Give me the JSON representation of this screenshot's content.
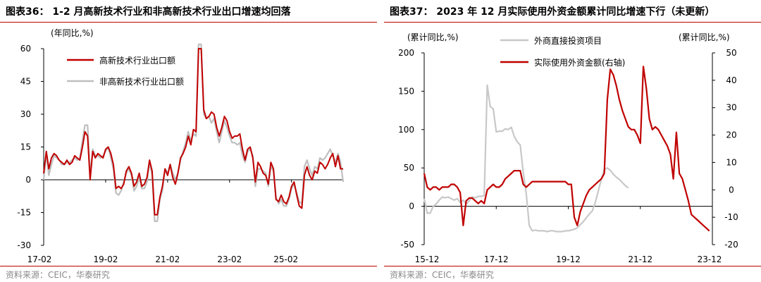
{
  "charts": [
    {
      "title": "图表36：  1-2 月高新技术行业和非高新技术行业出口增速均回落",
      "source": "资料来源：CEIC，华泰研究",
      "ylabel": "(年同比,%)",
      "x_tick_labels": [
        "17-02",
        "19-02",
        "21-02",
        "23-02",
        "25-02"
      ],
      "y_tick_labels": [
        "60",
        "45",
        "30",
        "15",
        "0",
        "-15",
        "-30"
      ],
      "legend": [
        "高新技术行业出口额",
        "非高新技术行业出口额"
      ]
    },
    {
      "title": "图表37：  2023 年 12 月实际使用外资金额累计同比增速下行（未更新）",
      "source": "资料来源：CEIC，华泰研究",
      "ylabel_left": "(累计同比,%)",
      "ylabel_right": "(累计同比,%)",
      "x_tick_labels": [
        "15-12",
        "17-12",
        "19-12",
        "21-12",
        "23-12"
      ],
      "y_left_tick_labels": [
        "200",
        "150",
        "100",
        "50",
        "0",
        "-50"
      ],
      "y_right_tick_labels": [
        "50",
        "40",
        "30",
        "20",
        "10",
        "0",
        "-10",
        "-20"
      ],
      "legend": [
        "外商直接投资项目",
        "实际使用外资金额(右轴)"
      ]
    }
  ],
  "chart_data": [
    {
      "type": "line",
      "x_start": "2017-02",
      "x_end": "2025-02",
      "ylim": [
        -30,
        60
      ],
      "grid": false,
      "legend_position": "top-left",
      "colors": [
        "#c00000",
        "#bfbfbf"
      ],
      "series": [
        {
          "name": "高新技术行业出口额",
          "color": "#c00000",
          "values": [
            3,
            13,
            5,
            10,
            12,
            11,
            9,
            8,
            7,
            9,
            7,
            8,
            11,
            10,
            9,
            15,
            22,
            20,
            0,
            13,
            10,
            12,
            11,
            10,
            14,
            15,
            12,
            7,
            -4,
            -3,
            -4,
            -2,
            4,
            6,
            3,
            -3,
            -1,
            3,
            -3,
            -2,
            1,
            9,
            4,
            -16,
            -16,
            -8,
            -3,
            5,
            2,
            7,
            1,
            -2,
            3,
            10,
            12,
            15,
            20,
            16,
            23,
            22,
            60,
            60,
            32,
            28,
            29,
            31,
            30,
            24,
            20,
            24,
            29,
            27,
            22,
            19,
            20,
            20,
            21,
            14,
            9,
            14,
            15,
            10,
            -1,
            8,
            6,
            3,
            2,
            -2,
            8,
            5,
            -9,
            -10,
            -7,
            -10,
            -11,
            -8,
            -3,
            -1,
            -7,
            -12,
            -13,
            2,
            6,
            2,
            0,
            4,
            3,
            8,
            7,
            5,
            7,
            10,
            12,
            6,
            11,
            5,
            5
          ]
        },
        {
          "name": "非高新技术行业出口额",
          "color": "#bfbfbf",
          "values": [
            0,
            12,
            2,
            7,
            11,
            10,
            9,
            7,
            7,
            8,
            8,
            9,
            10,
            9,
            10,
            18,
            25,
            25,
            2,
            14,
            11,
            11,
            10,
            11,
            13,
            15,
            10,
            5,
            -6,
            -7,
            -5,
            -1,
            3,
            5,
            2,
            -5,
            -3,
            1,
            -4,
            -4,
            -1,
            8,
            2,
            -19,
            -19,
            -9,
            -5,
            5,
            3,
            7,
            3,
            0,
            3,
            9,
            13,
            17,
            22,
            18,
            21,
            20,
            62,
            62,
            30,
            28,
            29,
            26,
            28,
            22,
            17,
            22,
            27,
            24,
            20,
            17,
            17,
            16,
            17,
            11,
            8,
            13,
            14,
            11,
            -3,
            5,
            5,
            4,
            3,
            -3,
            6,
            4,
            -8,
            -11,
            -9,
            -12,
            -12,
            -9,
            -4,
            -2,
            -6,
            -10,
            -11,
            6,
            9,
            5,
            2,
            6,
            5,
            10,
            9,
            10,
            12,
            14,
            11,
            8,
            12,
            8,
            -1
          ]
        }
      ]
    },
    {
      "type": "line",
      "x_start": "2015-12",
      "x_end": "2023-12",
      "ylim_left": [
        -50,
        200
      ],
      "ylim_right": [
        -20,
        50
      ],
      "grid": false,
      "legend_position": "top",
      "series": [
        {
          "name": "外商直接投资项目",
          "axis": "left",
          "color": "#c8c8c8",
          "points": [
            [
              "2015-12",
              10
            ],
            [
              "2016-01",
              -9
            ],
            [
              "2016-02",
              -9
            ],
            [
              "2016-03",
              0
            ],
            [
              "2016-04",
              3
            ],
            [
              "2016-05",
              8
            ],
            [
              "2016-06",
              12
            ],
            [
              "2016-07",
              11
            ],
            [
              "2016-08",
              12
            ],
            [
              "2016-09",
              10
            ],
            [
              "2016-10",
              8
            ],
            [
              "2016-11",
              10
            ],
            [
              "2016-12",
              5
            ],
            [
              "2017-01",
              8
            ],
            [
              "2017-02",
              3
            ],
            [
              "2017-03",
              7
            ],
            [
              "2017-04",
              12
            ],
            [
              "2017-05",
              11
            ],
            [
              "2017-06",
              13
            ],
            [
              "2017-07",
              13
            ],
            [
              "2017-08",
              14
            ],
            [
              "2017-09",
              158
            ],
            [
              "2017-10",
              130
            ],
            [
              "2017-11",
              127
            ],
            [
              "2017-12",
              97
            ],
            [
              "2018-01",
              98
            ],
            [
              "2018-02",
              98
            ],
            [
              "2018-03",
              101
            ],
            [
              "2018-04",
              100
            ],
            [
              "2018-05",
              103
            ],
            [
              "2018-06",
              91
            ],
            [
              "2018-07",
              84
            ],
            [
              "2018-08",
              80
            ],
            [
              "2018-09",
              44
            ],
            [
              "2018-10",
              16
            ],
            [
              "2018-11",
              -25
            ],
            [
              "2018-12",
              -32
            ],
            [
              "2019-01",
              -31
            ],
            [
              "2019-02",
              -32
            ],
            [
              "2019-03",
              -32
            ],
            [
              "2019-04",
              -32
            ],
            [
              "2019-05",
              -33
            ],
            [
              "2019-06",
              -32
            ],
            [
              "2019-07",
              -32
            ],
            [
              "2019-08",
              -33
            ],
            [
              "2019-09",
              -33
            ],
            [
              "2019-10",
              -33
            ],
            [
              "2019-11",
              -32
            ],
            [
              "2019-12",
              -32
            ],
            [
              "2020-01",
              -31
            ],
            [
              "2020-02",
              -30
            ],
            [
              "2020-03",
              -28
            ],
            [
              "2020-04",
              -24
            ],
            [
              "2020-05",
              -20
            ],
            [
              "2020-06",
              -15
            ],
            [
              "2020-07",
              -10
            ],
            [
              "2020-08",
              -6
            ],
            [
              "2020-09",
              5
            ],
            [
              "2020-10",
              20
            ],
            [
              "2020-11",
              35
            ],
            [
              "2020-12",
              48
            ],
            [
              "2021-01",
              50
            ],
            [
              "2021-02",
              47
            ],
            [
              "2021-03",
              42
            ],
            [
              "2021-04",
              38
            ],
            [
              "2021-05",
              35
            ],
            [
              "2021-06",
              31
            ],
            [
              "2021-07",
              27
            ],
            [
              "2021-08",
              24
            ]
          ]
        },
        {
          "name": "实际使用外资金额(右轴)",
          "axis": "right",
          "color": "#c00000",
          "points": [
            [
              "2015-12",
              6
            ],
            [
              "2016-01",
              1
            ],
            [
              "2016-02",
              0
            ],
            [
              "2016-03",
              1
            ],
            [
              "2016-04",
              1
            ],
            [
              "2016-05",
              0
            ],
            [
              "2016-06",
              1
            ],
            [
              "2016-07",
              1
            ],
            [
              "2016-08",
              1
            ],
            [
              "2016-09",
              2
            ],
            [
              "2016-10",
              2
            ],
            [
              "2016-11",
              1
            ],
            [
              "2016-12",
              -1
            ],
            [
              "2017-01",
              -13
            ],
            [
              "2017-02",
              -4
            ],
            [
              "2017-03",
              -3
            ],
            [
              "2017-04",
              -3
            ],
            [
              "2017-05",
              -4
            ],
            [
              "2017-06",
              -5
            ],
            [
              "2017-07",
              -4
            ],
            [
              "2017-08",
              -5
            ],
            [
              "2017-09",
              0
            ],
            [
              "2017-10",
              1
            ],
            [
              "2017-11",
              2
            ],
            [
              "2017-12",
              1
            ],
            [
              "2018-01",
              1
            ],
            [
              "2018-02",
              2
            ],
            [
              "2018-03",
              4
            ],
            [
              "2018-04",
              5
            ],
            [
              "2018-05",
              6
            ],
            [
              "2018-06",
              7
            ],
            [
              "2018-07",
              7
            ],
            [
              "2018-08",
              7
            ],
            [
              "2018-09",
              2
            ],
            [
              "2018-10",
              1
            ],
            [
              "2018-11",
              2
            ],
            [
              "2018-12",
              3
            ],
            [
              "2019-01",
              3
            ],
            [
              "2019-02",
              3
            ],
            [
              "2019-03",
              3
            ],
            [
              "2019-04",
              3
            ],
            [
              "2019-05",
              3
            ],
            [
              "2019-06",
              3
            ],
            [
              "2019-07",
              3
            ],
            [
              "2019-08",
              3
            ],
            [
              "2019-09",
              3
            ],
            [
              "2019-10",
              3
            ],
            [
              "2019-11",
              3
            ],
            [
              "2019-12",
              2
            ],
            [
              "2020-01",
              2
            ],
            [
              "2020-02",
              -10
            ],
            [
              "2020-03",
              -13
            ],
            [
              "2020-04",
              -8
            ],
            [
              "2020-05",
              -5
            ],
            [
              "2020-06",
              -2
            ],
            [
              "2020-07",
              0
            ],
            [
              "2020-08",
              1
            ],
            [
              "2020-09",
              2
            ],
            [
              "2020-10",
              3
            ],
            [
              "2020-11",
              4
            ],
            [
              "2020-12",
              6
            ],
            [
              "2021-01",
              33
            ],
            [
              "2021-02",
              44
            ],
            [
              "2021-03",
              42
            ],
            [
              "2021-04",
              38
            ],
            [
              "2021-05",
              33
            ],
            [
              "2021-06",
              29
            ],
            [
              "2021-07",
              26
            ],
            [
              "2021-08",
              23
            ],
            [
              "2021-09",
              22
            ],
            [
              "2021-10",
              22
            ],
            [
              "2021-11",
              20
            ],
            [
              "2021-12",
              17
            ],
            [
              "2022-01",
              45
            ],
            [
              "2022-02",
              37
            ],
            [
              "2022-03",
              26
            ],
            [
              "2022-04",
              22
            ],
            [
              "2022-05",
              23
            ],
            [
              "2022-06",
              22
            ],
            [
              "2022-07",
              20
            ],
            [
              "2022-08",
              18
            ],
            [
              "2022-09",
              16
            ],
            [
              "2022-10",
              13
            ],
            [
              "2022-11",
              4
            ],
            [
              "2022-12",
              21
            ],
            [
              "2023-01",
              6
            ],
            [
              "2023-02",
              4
            ],
            [
              "2023-03",
              0
            ],
            [
              "2023-04",
              -4
            ],
            [
              "2023-05",
              -9
            ],
            [
              "2023-06",
              -10
            ],
            [
              "2023-07",
              -11
            ],
            [
              "2023-08",
              -12
            ],
            [
              "2023-09",
              -13
            ],
            [
              "2023-10",
              -14
            ],
            [
              "2023-11",
              -15
            ]
          ]
        }
      ]
    }
  ]
}
